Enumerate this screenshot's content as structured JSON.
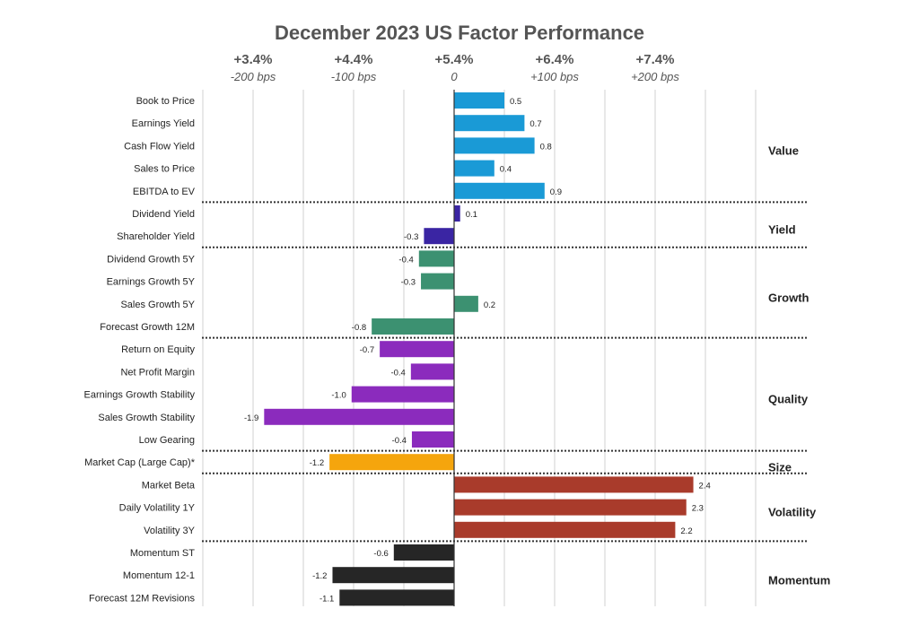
{
  "chart_data": {
    "type": "bar",
    "orientation": "horizontal",
    "title": "December 2023 US Factor Performance",
    "xlim": [
      -2.5,
      3.0
    ],
    "x_ticks": [
      {
        "value": -2,
        "return_label": "+3.4%",
        "bps_label": "-200 bps"
      },
      {
        "value": -1,
        "return_label": "+4.4%",
        "bps_label": "-100 bps"
      },
      {
        "value": 0,
        "return_label": "+5.4%",
        "bps_label": "0"
      },
      {
        "value": 1,
        "return_label": "+6.4%",
        "bps_label": "+100 bps"
      },
      {
        "value": 2,
        "return_label": "+7.4%",
        "bps_label": "+200 bps"
      }
    ],
    "groups": [
      {
        "name": "Value",
        "color": "#1a9ad6",
        "factors": [
          {
            "label": "Book to Price",
            "value": 0.5,
            "value_label": "0.5"
          },
          {
            "label": "Earnings Yield",
            "value": 0.7,
            "value_label": "0.7"
          },
          {
            "label": "Cash Flow Yield",
            "value": 0.8,
            "value_label": "0.8"
          },
          {
            "label": "Sales to Price",
            "value": 0.4,
            "value_label": "0.4"
          },
          {
            "label": "EBITDA to EV",
            "value": 0.9,
            "value_label": "0.9"
          }
        ]
      },
      {
        "name": "Yield",
        "color": "#3a25a3",
        "factors": [
          {
            "label": "Dividend Yield",
            "value": 0.06,
            "value_label": "0.1"
          },
          {
            "label": "Shareholder Yield",
            "value": -0.3,
            "value_label": "-0.3"
          }
        ]
      },
      {
        "name": "Growth",
        "color": "#3c9171",
        "factors": [
          {
            "label": "Dividend Growth 5Y",
            "value": -0.35,
            "value_label": "-0.4"
          },
          {
            "label": "Earnings Growth 5Y",
            "value": -0.33,
            "value_label": "-0.3"
          },
          {
            "label": "Sales Growth 5Y",
            "value": 0.24,
            "value_label": "0.2"
          },
          {
            "label": "Forecast Growth 12M",
            "value": -0.82,
            "value_label": "-0.8"
          }
        ]
      },
      {
        "name": "Quality",
        "color": "#8b2bbd",
        "factors": [
          {
            "label": "Return on Equity",
            "value": -0.74,
            "value_label": "-0.7"
          },
          {
            "label": "Net Profit Margin",
            "value": -0.43,
            "value_label": "-0.4"
          },
          {
            "label": "Earnings Growth Stability",
            "value": -1.02,
            "value_label": "-1.0"
          },
          {
            "label": "Sales Growth Stability",
            "value": -1.89,
            "value_label": "-1.9"
          },
          {
            "label": "Low Gearing",
            "value": -0.42,
            "value_label": "-0.4"
          }
        ]
      },
      {
        "name": "Size",
        "color": "#f5a50d",
        "factors": [
          {
            "label": "Market Cap (Large Cap)*",
            "value": -1.24,
            "value_label": "-1.2"
          }
        ]
      },
      {
        "name": "Volatility",
        "color": "#a93b2b",
        "factors": [
          {
            "label": "Market Beta",
            "value": 2.38,
            "value_label": "2.4"
          },
          {
            "label": "Daily Volatility 1Y",
            "value": 2.31,
            "value_label": "2.3"
          },
          {
            "label": "Volatility 3Y",
            "value": 2.2,
            "value_label": "2.2"
          }
        ]
      },
      {
        "name": "Momentum",
        "color": "#262626",
        "factors": [
          {
            "label": "Momentum ST",
            "value": -0.6,
            "value_label": "-0.6"
          },
          {
            "label": "Momentum 12-1",
            "value": -1.21,
            "value_label": "-1.2"
          },
          {
            "label": "Forecast 12M Revisions",
            "value": -1.14,
            "value_label": "-1.1"
          }
        ]
      }
    ]
  }
}
